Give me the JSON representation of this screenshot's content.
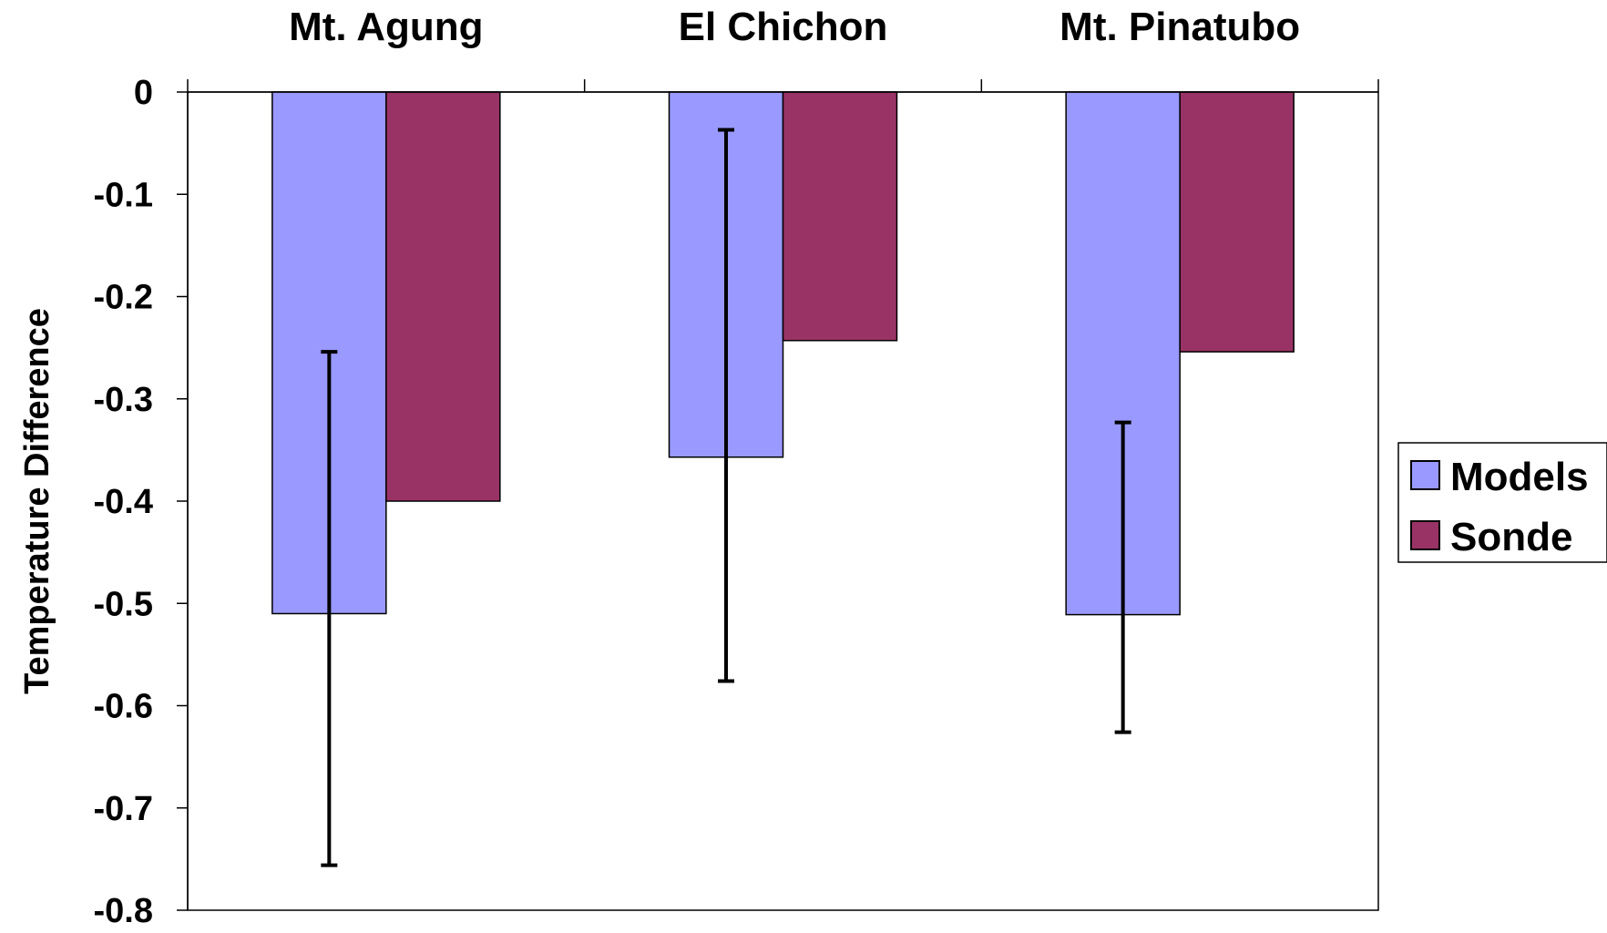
{
  "chart_data": {
    "type": "bar",
    "title": "",
    "xlabel": "",
    "ylabel": "Temperature Difference",
    "categories": [
      "Mt. Agung",
      "El Chichon",
      "Mt. Pinatubo"
    ],
    "category_axis_position": "top",
    "ylim": [
      -0.8,
      0
    ],
    "yticks": [
      0,
      -0.1,
      -0.2,
      -0.3,
      -0.4,
      -0.5,
      -0.6,
      -0.7,
      -0.8
    ],
    "ytick_labels": [
      "0",
      "-0.1",
      "-0.2",
      "-0.3",
      "-0.4",
      "-0.5",
      "-0.6",
      "-0.7",
      "-0.8"
    ],
    "grid": false,
    "legend_position": "right",
    "series": [
      {
        "name": "Models",
        "color": "#9999ff",
        "values": [
          -0.51,
          -0.357,
          -0.511
        ],
        "error_low": [
          -0.756,
          -0.576,
          -0.626
        ],
        "error_high": [
          -0.254,
          -0.037,
          -0.323
        ]
      },
      {
        "name": "Sonde",
        "color": "#993366",
        "values": [
          -0.4,
          -0.243,
          -0.254
        ]
      }
    ]
  }
}
